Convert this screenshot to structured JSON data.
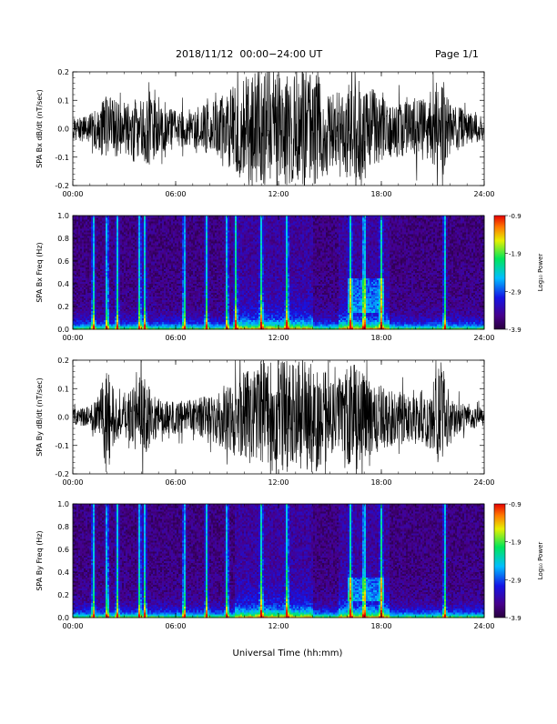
{
  "header": {
    "title": "2018/11/12  00:00−24:00 UT",
    "page": "Page 1/1"
  },
  "colors": {
    "trace": "#000000",
    "background": "#ffffff"
  },
  "chart_data": [
    {
      "type": "line",
      "ylabel": "SPA Bx dB/dt (nT/sec)",
      "xlim": [
        0,
        24
      ],
      "ylim": [
        -0.2,
        0.2
      ],
      "x_ticks": [
        "00:00",
        "06:00",
        "12:00",
        "18:00",
        "24:00"
      ],
      "y_ticks": [
        "-0.2",
        "-0.1",
        "0.0",
        "0.1",
        "0.2"
      ],
      "y_tick_values": [
        -0.2,
        -0.1,
        0.0,
        0.1,
        0.2
      ],
      "envelope": {
        "x": [
          0,
          1,
          1.5,
          2,
          2.5,
          3,
          3.5,
          4,
          4.5,
          5,
          5.5,
          6,
          6.5,
          7,
          7.5,
          8,
          8.5,
          9,
          9.5,
          10,
          10.5,
          11,
          11.5,
          12,
          12.5,
          13,
          13.5,
          14,
          14.5,
          15,
          15.5,
          16,
          16.5,
          17,
          17.5,
          18,
          18.5,
          19,
          19.5,
          20,
          20.5,
          21,
          21.5,
          22,
          22.5,
          23,
          23.5,
          24
        ],
        "amplitude": [
          0.04,
          0.05,
          0.08,
          0.12,
          0.1,
          0.08,
          0.12,
          0.1,
          0.14,
          0.08,
          0.08,
          0.07,
          0.07,
          0.07,
          0.08,
          0.09,
          0.11,
          0.13,
          0.16,
          0.2,
          0.2,
          0.2,
          0.2,
          0.2,
          0.2,
          0.2,
          0.2,
          0.2,
          0.18,
          0.14,
          0.13,
          0.16,
          0.18,
          0.16,
          0.14,
          0.12,
          0.1,
          0.1,
          0.1,
          0.12,
          0.11,
          0.14,
          0.2,
          0.09,
          0.08,
          0.06,
          0.05,
          0.04
        ]
      }
    },
    {
      "type": "heatmap",
      "ylabel": "SPA Bx Freq (Hz)",
      "xlim": [
        0,
        24
      ],
      "ylim": [
        0,
        1.0
      ],
      "x_ticks": [
        "00:00",
        "06:00",
        "12:00",
        "18:00",
        "24:00"
      ],
      "y_ticks": [
        "0.0",
        "0.2",
        "0.4",
        "0.6",
        "0.8",
        "1.0"
      ],
      "y_tick_values": [
        0,
        0.2,
        0.4,
        0.6,
        0.8,
        1.0
      ],
      "colorbar": {
        "label": "Log₁₀ Power",
        "range": [
          -3.9,
          -0.9
        ],
        "ticks": [
          "-0.9",
          "-1.9",
          "-2.9",
          "-3.9"
        ],
        "tick_values": [
          -0.9,
          -1.9,
          -2.9,
          -3.9
        ]
      },
      "events_hours": [
        1.2,
        2.0,
        2.6,
        3.9,
        4.2,
        6.5,
        7.8,
        9.0,
        9.5,
        11.0,
        12.5,
        16.2,
        17.0,
        18.0,
        21.7
      ],
      "broadband_hours": [
        [
          9.5,
          14.0
        ],
        [
          15.5,
          18.5
        ]
      ],
      "enhanced_region": {
        "hours": [
          16.0,
          18.2
        ],
        "freq_hz": [
          0.15,
          0.45
        ]
      }
    },
    {
      "type": "line",
      "ylabel": "SPA By dB/dt (nT/sec)",
      "xlim": [
        0,
        24
      ],
      "ylim": [
        -0.2,
        0.2
      ],
      "x_ticks": [
        "00:00",
        "06:00",
        "12:00",
        "18:00",
        "24:00"
      ],
      "y_ticks": [
        "-0.2",
        "-0.1",
        "0.0",
        "0.1",
        "0.2"
      ],
      "y_tick_values": [
        -0.2,
        -0.1,
        0.0,
        0.1,
        0.2
      ],
      "envelope": {
        "x": [
          0,
          1,
          1.5,
          2,
          2.5,
          3,
          3.5,
          4,
          4.5,
          5,
          5.5,
          6,
          6.5,
          7,
          7.5,
          8,
          8.5,
          9,
          9.5,
          10,
          10.5,
          11,
          11.5,
          12,
          12.5,
          13,
          13.5,
          14,
          14.5,
          15,
          15.5,
          16,
          16.5,
          17,
          17.5,
          18,
          18.5,
          19,
          19.5,
          20,
          20.5,
          21,
          21.5,
          22,
          22.5,
          23,
          23.5,
          24
        ],
        "amplitude": [
          0.03,
          0.04,
          0.06,
          0.2,
          0.08,
          0.07,
          0.1,
          0.2,
          0.1,
          0.07,
          0.06,
          0.06,
          0.06,
          0.06,
          0.07,
          0.08,
          0.1,
          0.12,
          0.14,
          0.16,
          0.2,
          0.2,
          0.2,
          0.2,
          0.2,
          0.2,
          0.2,
          0.2,
          0.18,
          0.14,
          0.13,
          0.17,
          0.2,
          0.16,
          0.13,
          0.12,
          0.1,
          0.09,
          0.09,
          0.1,
          0.1,
          0.12,
          0.2,
          0.08,
          0.06,
          0.05,
          0.04,
          0.03
        ]
      }
    },
    {
      "type": "heatmap",
      "ylabel": "SPA By Freq (Hz)",
      "xlabel": "Universal Time (hh:mm)",
      "xlim": [
        0,
        24
      ],
      "ylim": [
        0,
        1.0
      ],
      "x_ticks": [
        "00:00",
        "06:00",
        "12:00",
        "18:00",
        "24:00"
      ],
      "y_ticks": [
        "0.0",
        "0.2",
        "0.4",
        "0.6",
        "0.8",
        "1.0"
      ],
      "y_tick_values": [
        0,
        0.2,
        0.4,
        0.6,
        0.8,
        1.0
      ],
      "colorbar": {
        "label": "Log₁₀ Power",
        "range": [
          -3.9,
          -0.9
        ],
        "ticks": [
          "-0.9",
          "-1.9",
          "-2.9",
          "-3.9"
        ],
        "tick_values": [
          -0.9,
          -1.9,
          -2.9,
          -3.9
        ]
      },
      "events_hours": [
        1.2,
        2.0,
        2.6,
        3.9,
        4.2,
        6.5,
        7.8,
        9.0,
        11.0,
        12.5,
        16.2,
        17.0,
        18.0,
        21.7
      ],
      "broadband_hours": [
        [
          9.5,
          14.0
        ],
        [
          15.5,
          18.5
        ]
      ],
      "enhanced_region": {
        "hours": [
          16.0,
          18.2
        ],
        "freq_hz": [
          0.15,
          0.35
        ]
      }
    }
  ]
}
